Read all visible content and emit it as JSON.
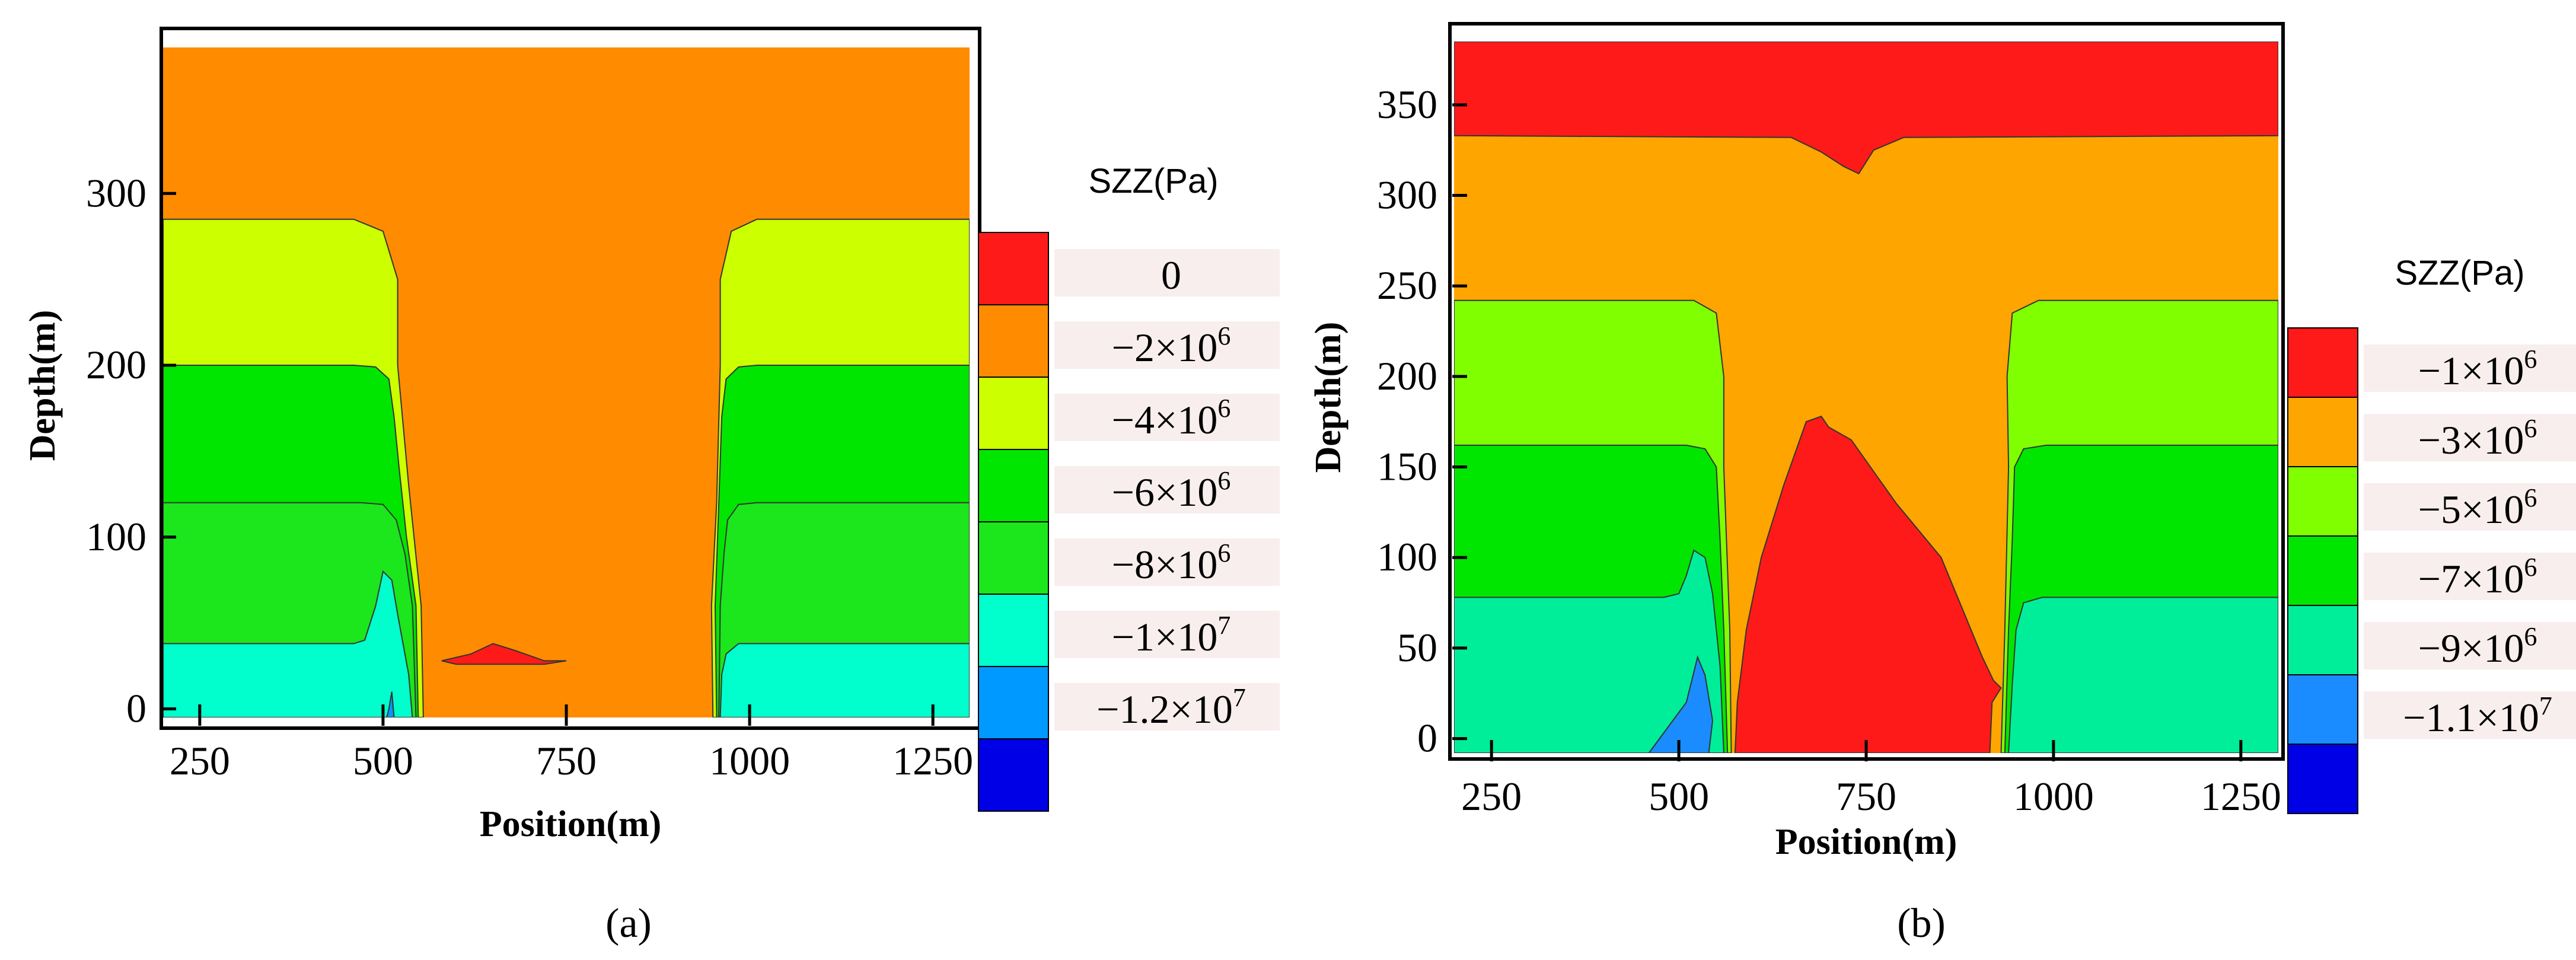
{
  "chart_data": [
    {
      "type": "heatmap",
      "panel_label": "(a)",
      "xlabel": "Position(m)",
      "ylabel": "Depth(m)",
      "xlim": [
        200,
        1300
      ],
      "ylim": [
        -5,
        385
      ],
      "xticks": [
        250,
        500,
        750,
        1000,
        1250
      ],
      "yticks": [
        0,
        100,
        200,
        300
      ],
      "legend": {
        "title": "SZZ(Pa)",
        "levels": [
          {
            "label": "0",
            "color": "#ff1a1a"
          },
          {
            "label": "−2×10",
            "exp": "6",
            "color": "#ff8c00"
          },
          {
            "label": "−4×10",
            "exp": "6",
            "color": "#ccff00"
          },
          {
            "label": "−6×10",
            "exp": "6",
            "color": "#00e600"
          },
          {
            "label": "−8×10",
            "exp": "6",
            "color": "#1ce61c"
          },
          {
            "label": "−1×10",
            "exp": "7",
            "color": "#00ffcc"
          },
          {
            "label": "−1.2×10",
            "exp": "7",
            "color": "#0099ff"
          },
          {
            "label": "",
            "color": "#0000e6"
          }
        ]
      },
      "regions": [
        {
          "color": "#ff8c00",
          "points": [
            [
              200,
              -5
            ],
            [
              1300,
              -5
            ],
            [
              1300,
              385
            ],
            [
              200,
              385
            ]
          ]
        },
        {
          "color": "#ccff00",
          "points": [
            [
              200,
              285
            ],
            [
              200,
              -5
            ],
            [
              555,
              -5
            ],
            [
              552,
              60
            ],
            [
              535,
              130
            ],
            [
              520,
              200
            ],
            [
              520,
              250
            ],
            [
              500,
              278
            ],
            [
              460,
              285
            ]
          ]
        },
        {
          "color": "#00e600",
          "points": [
            [
              200,
              200
            ],
            [
              200,
              -5
            ],
            [
              548,
              -5
            ],
            [
              545,
              60
            ],
            [
              532,
              100
            ],
            [
              522,
              140
            ],
            [
              515,
              170
            ],
            [
              508,
              192
            ],
            [
              490,
              199
            ],
            [
              460,
              200
            ]
          ]
        },
        {
          "color": "#1ce61c",
          "points": [
            [
              200,
              120
            ],
            [
              200,
              -5
            ],
            [
              545,
              -5
            ],
            [
              540,
              60
            ],
            [
              530,
              90
            ],
            [
              518,
              110
            ],
            [
              500,
              119
            ],
            [
              470,
              120
            ]
          ]
        },
        {
          "color": "#00ffcc",
          "points": [
            [
              200,
              38
            ],
            [
              200,
              -5
            ],
            [
              540,
              -5
            ],
            [
              535,
              20
            ],
            [
              520,
              55
            ],
            [
              512,
              75
            ],
            [
              500,
              80
            ],
            [
              490,
              60
            ],
            [
              475,
              40
            ],
            [
              460,
              38
            ]
          ]
        },
        {
          "color": "#0099ff",
          "points": [
            [
              505,
              -5
            ],
            [
              515,
              -5
            ],
            [
              512,
              10
            ],
            [
              508,
              0
            ]
          ]
        },
        {
          "color": "#ccff00",
          "points": [
            [
              1300,
              285
            ],
            [
              1300,
              -5
            ],
            [
              950,
              -5
            ],
            [
              948,
              60
            ],
            [
              955,
              120
            ],
            [
              960,
              200
            ],
            [
              960,
              250
            ],
            [
              975,
              278
            ],
            [
              1010,
              285
            ]
          ]
        },
        {
          "color": "#00e600",
          "points": [
            [
              1300,
              200
            ],
            [
              1300,
              -5
            ],
            [
              955,
              -5
            ],
            [
              953,
              60
            ],
            [
              958,
              120
            ],
            [
              962,
              170
            ],
            [
              968,
              192
            ],
            [
              985,
              199
            ],
            [
              1010,
              200
            ]
          ]
        },
        {
          "color": "#1ce61c",
          "points": [
            [
              1300,
              120
            ],
            [
              1300,
              -5
            ],
            [
              958,
              -5
            ],
            [
              960,
              60
            ],
            [
              965,
              90
            ],
            [
              970,
              110
            ],
            [
              985,
              119
            ],
            [
              1010,
              120
            ]
          ]
        },
        {
          "color": "#00ffcc",
          "points": [
            [
              1300,
              38
            ],
            [
              1300,
              -5
            ],
            [
              960,
              -5
            ],
            [
              962,
              20
            ],
            [
              968,
              32
            ],
            [
              985,
              38
            ],
            [
              1010,
              38
            ]
          ]
        },
        {
          "color": "#ff1a1a",
          "points": [
            [
              580,
              28
            ],
            [
              600,
              30
            ],
            [
              620,
              32
            ],
            [
              650,
              38
            ],
            [
              680,
              34
            ],
            [
              720,
              28
            ],
            [
              750,
              28
            ],
            [
              720,
              26
            ],
            [
              650,
              26
            ],
            [
              600,
              26
            ]
          ]
        }
      ]
    },
    {
      "type": "heatmap",
      "panel_label": "(b)",
      "xlabel": "Position(m)",
      "ylabel": "Depth(m)",
      "xlim": [
        200,
        1300
      ],
      "ylim": [
        -8,
        385
      ],
      "xticks": [
        250,
        500,
        750,
        1000,
        1250
      ],
      "yticks": [
        0,
        50,
        100,
        150,
        200,
        250,
        300,
        350
      ],
      "legend": {
        "title": "SZZ(Pa)",
        "levels": [
          {
            "label": "−1×10",
            "exp": "6",
            "color": "#ff1a1a"
          },
          {
            "label": "−3×10",
            "exp": "6",
            "color": "#ffa500"
          },
          {
            "label": "−5×10",
            "exp": "6",
            "color": "#80ff00"
          },
          {
            "label": "−7×10",
            "exp": "6",
            "color": "#00e600"
          },
          {
            "label": "−9×10",
            "exp": "6",
            "color": "#00ee99"
          },
          {
            "label": "−1.1×10",
            "exp": "7",
            "color": "#1a8cff"
          },
          {
            "label": "",
            "color": "#0000e6"
          }
        ]
      },
      "regions": [
        {
          "color": "#ffa500",
          "points": [
            [
              200,
              -8
            ],
            [
              1300,
              -8
            ],
            [
              1300,
              385
            ],
            [
              200,
              385
            ]
          ]
        },
        {
          "color": "#ff1a1a",
          "points": [
            [
              200,
              385
            ],
            [
              1300,
              385
            ],
            [
              1300,
              333
            ],
            [
              800,
              332
            ],
            [
              760,
              325
            ],
            [
              740,
              312
            ],
            [
              720,
              316
            ],
            [
              690,
              324
            ],
            [
              650,
              332
            ],
            [
              200,
              333
            ]
          ]
        },
        {
          "color": "#80ff00",
          "points": [
            [
              200,
              242
            ],
            [
              200,
              -8
            ],
            [
              570,
              -8
            ],
            [
              568,
              60
            ],
            [
              560,
              150
            ],
            [
              560,
              200
            ],
            [
              550,
              235
            ],
            [
              520,
              242
            ]
          ]
        },
        {
          "color": "#00e600",
          "points": [
            [
              200,
              162
            ],
            [
              200,
              -8
            ],
            [
              565,
              -8
            ],
            [
              560,
              60
            ],
            [
              555,
              110
            ],
            [
              550,
              150
            ],
            [
              535,
              160
            ],
            [
              510,
              162
            ]
          ]
        },
        {
          "color": "#00ee99",
          "points": [
            [
              200,
              78
            ],
            [
              200,
              -8
            ],
            [
              560,
              -8
            ],
            [
              555,
              40
            ],
            [
              545,
              80
            ],
            [
              535,
              100
            ],
            [
              520,
              104
            ],
            [
              510,
              90
            ],
            [
              500,
              80
            ],
            [
              480,
              78
            ]
          ]
        },
        {
          "color": "#1a8cff",
          "points": [
            [
              460,
              -8
            ],
            [
              540,
              -8
            ],
            [
              545,
              10
            ],
            [
              535,
              35
            ],
            [
              525,
              45
            ],
            [
              510,
              20
            ]
          ]
        },
        {
          "color": "#80ff00",
          "points": [
            [
              1300,
              242
            ],
            [
              1300,
              -8
            ],
            [
              930,
              -8
            ],
            [
              935,
              60
            ],
            [
              940,
              150
            ],
            [
              938,
              200
            ],
            [
              945,
              235
            ],
            [
              980,
              242
            ]
          ]
        },
        {
          "color": "#00e600",
          "points": [
            [
              1300,
              162
            ],
            [
              1300,
              -8
            ],
            [
              935,
              -8
            ],
            [
              940,
              60
            ],
            [
              945,
              110
            ],
            [
              948,
              150
            ],
            [
              960,
              160
            ],
            [
              990,
              162
            ]
          ]
        },
        {
          "color": "#00ee99",
          "points": [
            [
              1300,
              78
            ],
            [
              1300,
              -8
            ],
            [
              940,
              -8
            ],
            [
              945,
              30
            ],
            [
              950,
              60
            ],
            [
              960,
              75
            ],
            [
              985,
              78
            ]
          ]
        },
        {
          "color": "#ff1a1a",
          "points": [
            [
              575,
              -8
            ],
            [
              915,
              -8
            ],
            [
              918,
              20
            ],
            [
              930,
              28
            ],
            [
              920,
              32
            ],
            [
              905,
              45
            ],
            [
              880,
              70
            ],
            [
              850,
              100
            ],
            [
              790,
              130
            ],
            [
              730,
              165
            ],
            [
              700,
              172
            ],
            [
              690,
              178
            ],
            [
              670,
              175
            ],
            [
              640,
              140
            ],
            [
              610,
              100
            ],
            [
              590,
              60
            ],
            [
              578,
              20
            ]
          ]
        }
      ]
    }
  ]
}
